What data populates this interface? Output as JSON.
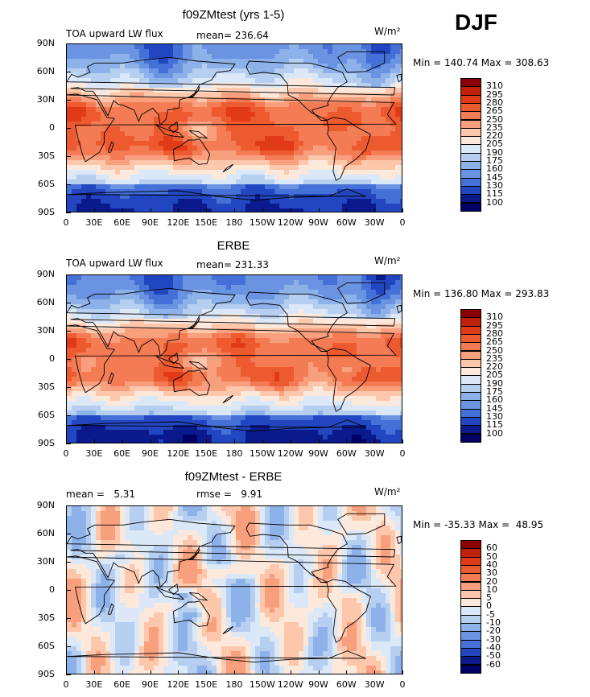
{
  "season": "DJF",
  "units": "W/m²",
  "panels": [
    {
      "title": "f09ZMtest (yrs 1-5)",
      "left_label": "TOA upward LW flux",
      "mid_label": "mean= 236.64",
      "minmax": "Min = 140.74 Max = 308.63",
      "levels": [
        "310",
        "295",
        "280",
        "265",
        "250",
        "235",
        "220",
        "205",
        "190",
        "175",
        "160",
        "145",
        "130",
        "115",
        "100"
      ],
      "palette": "abs",
      "variant": 0
    },
    {
      "title": "ERBE",
      "left_label": "TOA upward LW flux",
      "mid_label": "mean= 231.33",
      "minmax": "Min = 136.80 Max = 293.83",
      "levels": [
        "310",
        "295",
        "280",
        "265",
        "250",
        "235",
        "220",
        "205",
        "190",
        "175",
        "160",
        "145",
        "130",
        "115",
        "100"
      ],
      "palette": "abs",
      "variant": 1
    },
    {
      "title": "f09ZMtest - ERBE",
      "left_label": "mean =   5.31",
      "mid_label": "rmse =   9.91",
      "minmax": "Min = -35.33 Max =  48.95",
      "levels": [
        "60",
        "50",
        "40",
        "30",
        "20",
        "10",
        "5",
        "0",
        "-5",
        "-10",
        "-20",
        "-30",
        "-40",
        "-50",
        "-60"
      ],
      "palette": "diff",
      "variant": 2
    }
  ],
  "x_ticks": [
    "0",
    "30E",
    "60E",
    "90E",
    "120E",
    "150E",
    "180",
    "150W",
    "120W",
    "90W",
    "60W",
    "30W",
    "0"
  ],
  "y_ticks": [
    "90N",
    "60N",
    "30N",
    "0",
    "30S",
    "60S",
    "90S"
  ],
  "colors": {
    "abs": [
      "#8b0000",
      "#c0200a",
      "#e03a18",
      "#ee5a30",
      "#f47c55",
      "#f8a07e",
      "#fcc7ab",
      "#fde9dc",
      "#dbe8f7",
      "#b6cff0",
      "#8db2ea",
      "#6a93e2",
      "#4470d8",
      "#2246c0",
      "#0a1a8c",
      "#000066"
    ],
    "diff": [
      "#8b0000",
      "#c0200a",
      "#e03a18",
      "#ee5a30",
      "#f47c55",
      "#f8a07e",
      "#fcc7ab",
      "#fde9dc",
      "#dbe8f7",
      "#b6cff0",
      "#8db2ea",
      "#6a93e2",
      "#4470d8",
      "#2246c0",
      "#0a1a8c",
      "#000066"
    ]
  },
  "chart_data": [
    {
      "type": "heatmap",
      "title": "f09ZMtest (yrs 1-5)",
      "field": "TOA upward LW flux",
      "units": "W/m²",
      "mean": 236.64,
      "min": 140.74,
      "max": 308.63,
      "contour_levels": [
        100,
        115,
        130,
        145,
        160,
        175,
        190,
        205,
        220,
        235,
        250,
        265,
        280,
        295,
        310
      ],
      "x_ticks": [
        "0",
        "30E",
        "60E",
        "90E",
        "120E",
        "150E",
        "180",
        "150W",
        "120W",
        "90W",
        "60W",
        "30W",
        "0"
      ],
      "y_ticks": [
        "90N",
        "60N",
        "30N",
        "0",
        "30S",
        "60S",
        "90S"
      ]
    },
    {
      "type": "heatmap",
      "title": "ERBE",
      "field": "TOA upward LW flux",
      "units": "W/m²",
      "mean": 231.33,
      "min": 136.8,
      "max": 293.83,
      "contour_levels": [
        100,
        115,
        130,
        145,
        160,
        175,
        190,
        205,
        220,
        235,
        250,
        265,
        280,
        295,
        310
      ],
      "x_ticks": [
        "0",
        "30E",
        "60E",
        "90E",
        "120E",
        "150E",
        "180",
        "150W",
        "120W",
        "90W",
        "60W",
        "30W",
        "0"
      ],
      "y_ticks": [
        "90N",
        "60N",
        "30N",
        "0",
        "30S",
        "60S",
        "90S"
      ]
    },
    {
      "type": "heatmap",
      "title": "f09ZMtest - ERBE",
      "units": "W/m²",
      "mean": 5.31,
      "rmse": 9.91,
      "min": -35.33,
      "max": 48.95,
      "contour_levels": [
        -60,
        -50,
        -40,
        -30,
        -20,
        -10,
        -5,
        0,
        5,
        10,
        20,
        30,
        40,
        50,
        60
      ],
      "x_ticks": [
        "0",
        "30E",
        "60E",
        "90E",
        "120E",
        "150E",
        "180",
        "150W",
        "120W",
        "90W",
        "60W",
        "30W",
        "0"
      ],
      "y_ticks": [
        "90N",
        "60N",
        "30N",
        "0",
        "30S",
        "60S",
        "90S"
      ]
    }
  ]
}
